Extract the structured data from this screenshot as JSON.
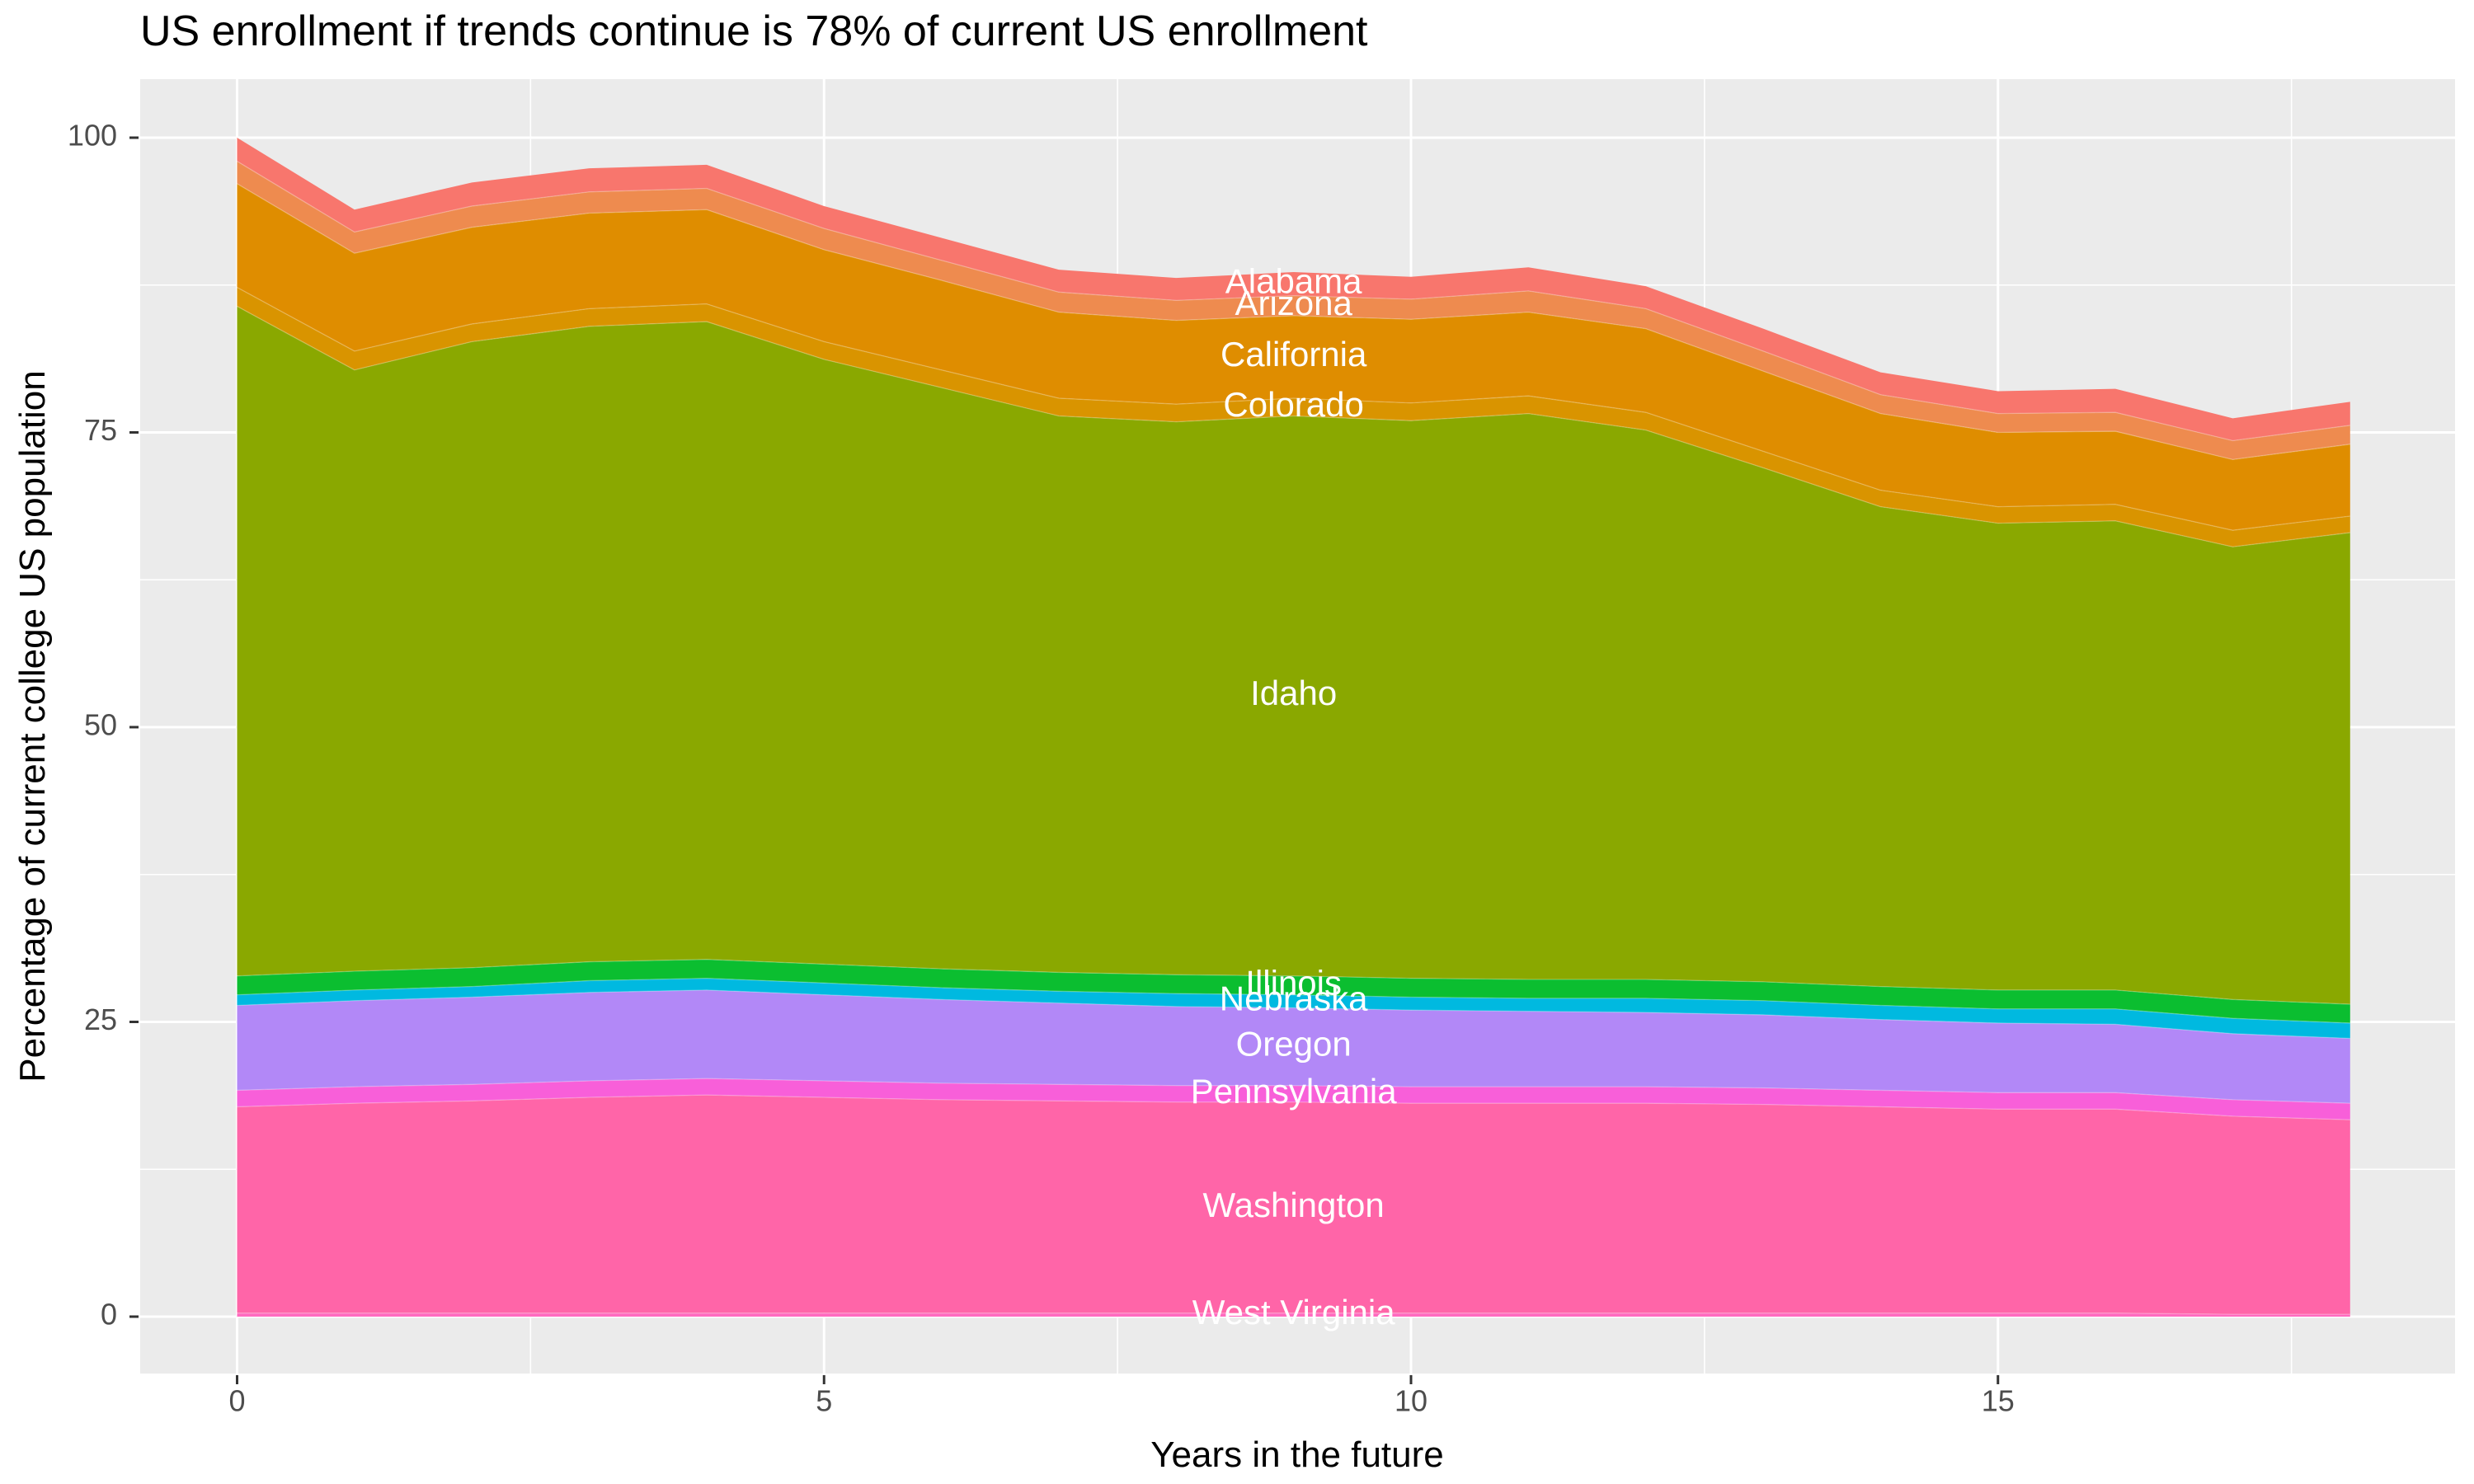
{
  "title": "US enrollment if trends continue is 78% of current US enrollment",
  "chart_data": {
    "type": "area",
    "stacked": true,
    "title": "US enrollment if trends continue is 78% of current US enrollment",
    "xlabel": "Years in the future",
    "ylabel": "Percentage of current college US population",
    "x": [
      0,
      1,
      2,
      3,
      4,
      5,
      6,
      7,
      8,
      9,
      10,
      11,
      12,
      13,
      14,
      15,
      16,
      17,
      18
    ],
    "xlim": [
      -0.9,
      18.9
    ],
    "ylim": [
      -4.9,
      104.9
    ],
    "x_ticks": [
      0,
      5,
      10,
      15
    ],
    "y_ticks": [
      0,
      25,
      50,
      75,
      100
    ],
    "x_minor_ticks": [
      2.5,
      7.5,
      12.5,
      17.5
    ],
    "y_minor_ticks": [
      12.5,
      37.5,
      62.5,
      87.5
    ],
    "grid": "on",
    "legend_position": "none",
    "direct_label_x": 9,
    "total_at_end_pct": 78,
    "series": [
      {
        "name": "Alabama",
        "color": "#F8766D",
        "values": [
          2.0,
          1.9,
          2.0,
          2.0,
          2.0,
          1.9,
          1.9,
          1.9,
          1.9,
          2.0,
          1.9,
          2.0,
          1.9,
          1.9,
          1.9,
          1.9,
          2.0,
          1.9,
          2.0
        ]
      },
      {
        "name": "Arizona",
        "color": "#EE8B4F",
        "values": [
          1.9,
          1.8,
          1.8,
          1.8,
          1.8,
          1.8,
          1.7,
          1.7,
          1.7,
          1.7,
          1.7,
          1.8,
          1.7,
          1.7,
          1.6,
          1.6,
          1.6,
          1.6,
          1.6
        ]
      },
      {
        "name": "California",
        "color": "#DF8D00",
        "values": [
          8.8,
          8.3,
          8.2,
          8.1,
          8.0,
          7.8,
          7.6,
          7.3,
          7.1,
          7.0,
          7.1,
          7.1,
          7.1,
          6.8,
          6.5,
          6.3,
          6.2,
          6.0,
          6.1
        ]
      },
      {
        "name": "Colorado",
        "color": "#D99400",
        "values": [
          1.6,
          1.6,
          1.5,
          1.5,
          1.5,
          1.5,
          1.5,
          1.5,
          1.5,
          1.5,
          1.5,
          1.5,
          1.5,
          1.4,
          1.4,
          1.4,
          1.4,
          1.4,
          1.4
        ]
      },
      {
        "name": "Idaho",
        "color": "#8AA800",
        "values": [
          56.8,
          51.0,
          53.1,
          53.9,
          54.1,
          51.3,
          49.3,
          47.2,
          46.9,
          47.5,
          47.3,
          48.0,
          46.6,
          43.6,
          40.7,
          39.6,
          39.8,
          38.4,
          40.0
        ]
      },
      {
        "name": "Illinois",
        "color": "#0BBE30",
        "values": [
          1.6,
          1.6,
          1.6,
          1.6,
          1.6,
          1.6,
          1.6,
          1.6,
          1.6,
          1.6,
          1.6,
          1.6,
          1.6,
          1.6,
          1.6,
          1.6,
          1.6,
          1.6,
          1.6
        ]
      },
      {
        "name": "Nebraska",
        "color": "#00B9E0",
        "values": [
          0.9,
          0.9,
          0.9,
          1.0,
          1.0,
          1.0,
          1.0,
          1.0,
          1.1,
          1.1,
          1.1,
          1.1,
          1.2,
          1.2,
          1.2,
          1.2,
          1.3,
          1.3,
          1.3
        ]
      },
      {
        "name": "Oregon",
        "color": "#B288F7",
        "values": [
          7.2,
          7.3,
          7.4,
          7.5,
          7.5,
          7.3,
          7.1,
          6.9,
          6.7,
          6.6,
          6.5,
          6.4,
          6.3,
          6.2,
          6.0,
          5.9,
          5.8,
          5.6,
          5.5
        ]
      },
      {
        "name": "Pennsylvania",
        "color": "#F85FD9",
        "values": [
          1.4,
          1.4,
          1.4,
          1.4,
          1.4,
          1.4,
          1.4,
          1.4,
          1.4,
          1.4,
          1.4,
          1.4,
          1.4,
          1.4,
          1.4,
          1.4,
          1.4,
          1.4,
          1.4
        ]
      },
      {
        "name": "Washington",
        "color": "#FF65A8",
        "values": [
          17.5,
          17.8,
          18.0,
          18.3,
          18.5,
          18.3,
          18.1,
          18.0,
          17.9,
          17.9,
          17.8,
          17.8,
          17.8,
          17.7,
          17.5,
          17.3,
          17.3,
          16.8,
          16.5
        ]
      },
      {
        "name": "West Virginia",
        "color": "#FF6BBF",
        "values": [
          0.3,
          0.3,
          0.3,
          0.3,
          0.3,
          0.3,
          0.3,
          0.3,
          0.3,
          0.3,
          0.3,
          0.3,
          0.3,
          0.3,
          0.3,
          0.3,
          0.3,
          0.2,
          0.2
        ]
      }
    ]
  },
  "style": {
    "panel_bg": "#EBEBEB",
    "grid_color": "#FFFFFF",
    "tick_mark_color": "#333333",
    "tick_label_color": "#4D4D4D",
    "band_label_color": "#FFFFFF",
    "title_color": "#000000"
  }
}
